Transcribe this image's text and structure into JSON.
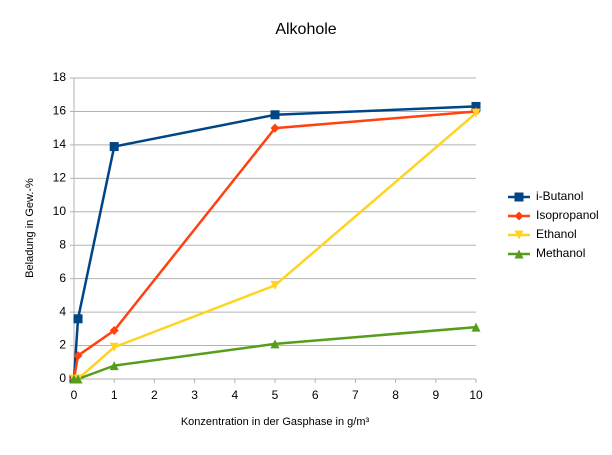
{
  "chart_data": {
    "type": "line",
    "title": "Alkohole",
    "x_label": "Konzentration in der Gasphase in g/m³",
    "y_label": "Beladung in Gew.-%",
    "x": [
      0,
      0.1,
      1,
      5,
      10
    ],
    "series": [
      {
        "name": "i-Butanol",
        "color": "#004586",
        "marker": "square",
        "values": [
          0,
          3.6,
          13.9,
          15.8,
          16.3
        ]
      },
      {
        "name": "Isopropanol",
        "color": "#ff420e",
        "marker": "diamond",
        "values": [
          0,
          1.4,
          2.9,
          15.0,
          16.0
        ]
      },
      {
        "name": "Ethanol",
        "color": "#ffd320",
        "marker": "triangle-down",
        "values": [
          0,
          0,
          1.9,
          5.6,
          15.9
        ]
      },
      {
        "name": "Methanol",
        "color": "#579d1c",
        "marker": "triangle-up",
        "values": [
          0,
          0,
          0.8,
          2.1,
          3.1
        ]
      }
    ],
    "xlim": [
      0,
      10
    ],
    "xticks": [
      0,
      1,
      2,
      3,
      4,
      5,
      6,
      7,
      8,
      9,
      10
    ],
    "ylim": [
      0,
      18
    ],
    "yticks": [
      0,
      2,
      4,
      6,
      8,
      10,
      12,
      14,
      16,
      18
    ],
    "grid": true,
    "legend": "right"
  }
}
